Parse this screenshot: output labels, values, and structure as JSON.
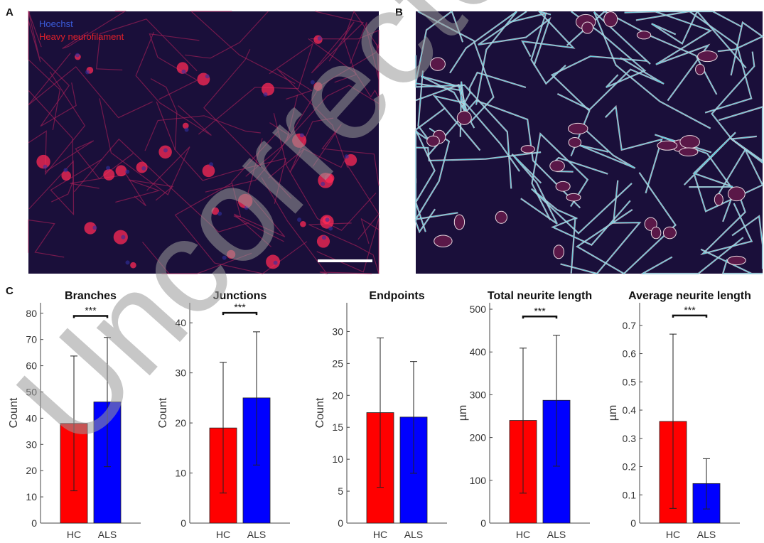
{
  "panels": {
    "a": "A",
    "b": "B",
    "c": "C"
  },
  "image_a": {
    "legend": [
      {
        "label": "Hoechst",
        "color": "#3a5bd9"
      },
      {
        "label": "Heavy neurofilament",
        "color": "#e0202a"
      }
    ]
  },
  "watermark": "Uncorrected",
  "colors": {
    "hc": "#ff0000",
    "als": "#0000ff",
    "image_bg": "#1a0f3a"
  },
  "chart_data": [
    {
      "type": "bar",
      "title": "Branches",
      "ylabel": "Count",
      "categories": [
        "HC",
        "ALS"
      ],
      "values": [
        38,
        46.2
      ],
      "error_low": [
        12.3,
        21.5
      ],
      "error_high": [
        63.7,
        70.8
      ],
      "ylim": [
        0,
        84
      ],
      "yticks": [
        0,
        10,
        20,
        30,
        40,
        50,
        60,
        70,
        80
      ],
      "significance": "***",
      "sig_level": 79
    },
    {
      "type": "bar",
      "title": "Junctions",
      "ylabel": "Count",
      "categories": [
        "HC",
        "ALS"
      ],
      "values": [
        19,
        25
      ],
      "error_low": [
        6,
        11.6
      ],
      "error_high": [
        32.1,
        38.2
      ],
      "ylim": [
        0,
        44
      ],
      "yticks": [
        0,
        10,
        20,
        30,
        40
      ],
      "significance": "***",
      "sig_level": 42
    },
    {
      "type": "bar",
      "title": "Endpoints",
      "ylabel": "Count",
      "categories": [
        "HC",
        "ALS"
      ],
      "values": [
        17.3,
        16.6
      ],
      "error_low": [
        5.6,
        7.8
      ],
      "error_high": [
        29,
        25.3
      ],
      "ylim": [
        0,
        34.5
      ],
      "yticks": [
        0,
        5,
        10,
        15,
        20,
        25,
        30
      ],
      "significance": "",
      "sig_level": null
    },
    {
      "type": "bar",
      "title": "Total neurite length",
      "ylabel": "µm",
      "categories": [
        "HC",
        "ALS"
      ],
      "values": [
        240,
        287
      ],
      "error_low": [
        70,
        133
      ],
      "error_high": [
        409,
        439
      ],
      "ylim": [
        0,
        515
      ],
      "yticks": [
        0,
        100,
        200,
        300,
        400,
        500
      ],
      "significance": "***",
      "sig_level": 483
    },
    {
      "type": "bar",
      "title": "Average neurite length",
      "ylabel": "µm",
      "categories": [
        "HC",
        "ALS"
      ],
      "values": [
        0.36,
        0.14
      ],
      "error_low": [
        0.052,
        0.05
      ],
      "error_high": [
        0.669,
        0.228
      ],
      "ylim": [
        0,
        0.78
      ],
      "yticks": [
        0,
        0.1,
        0.2,
        0.3,
        0.4,
        0.5,
        0.6,
        0.7
      ],
      "significance": "***",
      "sig_level": 0.735
    }
  ]
}
